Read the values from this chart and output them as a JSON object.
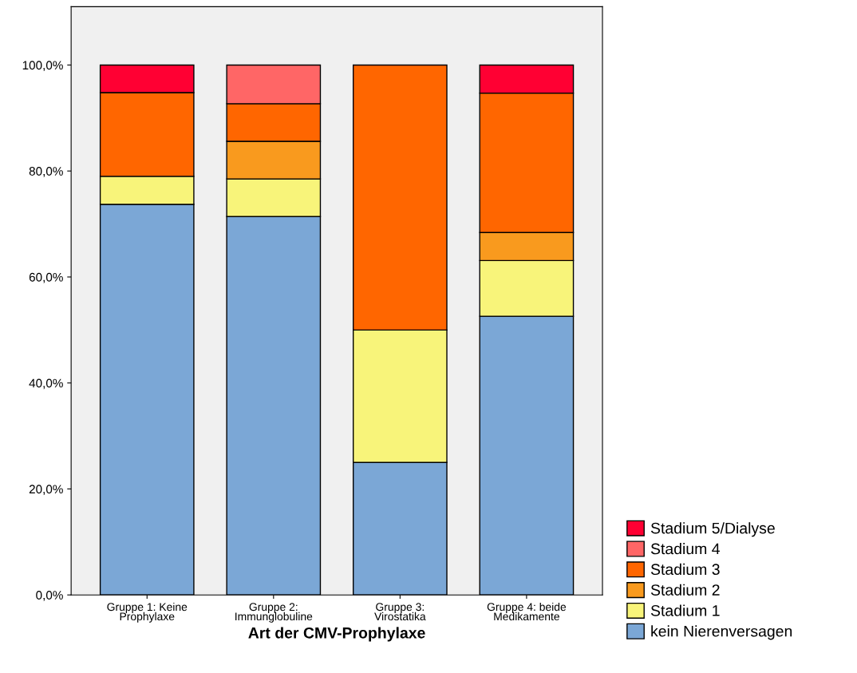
{
  "chart_data": {
    "type": "bar",
    "stacked": true,
    "xlabel": "Art der CMV-Prophylaxe",
    "categories": [
      "Gruppe 1: Keine\nProphylaxe",
      "Gruppe 2:\nImmunglobuline",
      "Gruppe 3:\nVirostatika",
      "Gruppe 4: beide\nMedikamente"
    ],
    "series": [
      {
        "name": "kein Nierenversagen",
        "color": "#7ba7d6",
        "values": [
          73.7,
          71.4,
          25,
          52.6
        ]
      },
      {
        "name": "Stadium 1",
        "color": "#f8f47a",
        "values": [
          5.3,
          7.1,
          25,
          10.5
        ]
      },
      {
        "name": "Stadium 2",
        "color": "#f99a1e",
        "values": [
          0,
          7.1,
          0,
          5.3
        ]
      },
      {
        "name": "Stadium 3",
        "color": "#ff6600",
        "values": [
          15.8,
          7.1,
          50,
          26.3
        ]
      },
      {
        "name": "Stadium 4",
        "color": "#ff6666",
        "values": [
          0,
          7.3,
          0,
          0
        ]
      },
      {
        "name": "Stadium 5/Dialyse",
        "color": "#ff0033",
        "values": [
          5.2,
          0,
          0,
          5.3
        ]
      }
    ],
    "ylim": [
      0,
      111
    ],
    "yticks": [
      {
        "value": 0,
        "label": "0,0%"
      },
      {
        "value": 20,
        "label": "20,0%"
      },
      {
        "value": 40,
        "label": "40,0%"
      },
      {
        "value": 60,
        "label": "60,0%"
      },
      {
        "value": 80,
        "label": "80,0%"
      },
      {
        "value": 100,
        "label": "100,0%"
      }
    ],
    "grid": false,
    "legend": "bottom right"
  }
}
